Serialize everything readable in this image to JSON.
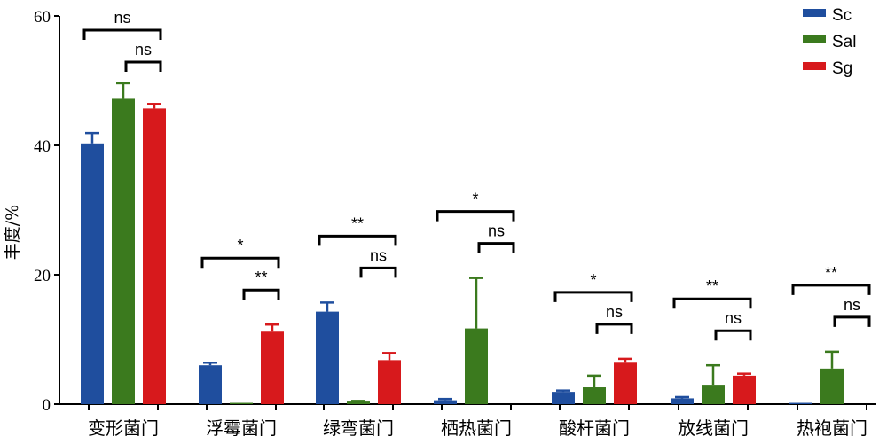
{
  "chart_data": {
    "type": "bar",
    "title": "",
    "xlabel": "",
    "ylabel": "丰度/%",
    "ylim": [
      0,
      60
    ],
    "yticks": [
      0,
      20,
      40,
      60
    ],
    "grid": false,
    "legend_position": "top-right",
    "categories": [
      "变形菌门",
      "浮霉菌门",
      "绿弯菌门",
      "栖热菌门",
      "酸杆菌门",
      "放线菌门",
      "热袍菌门"
    ],
    "series": [
      {
        "name": "Sc",
        "color": "#1f4e9e",
        "values": [
          40.3,
          6.0,
          14.3,
          0.6,
          1.9,
          0.9,
          0.2
        ],
        "errors": [
          1.6,
          0.4,
          1.4,
          0.2,
          0.2,
          0.2,
          0.0
        ]
      },
      {
        "name": "Sal",
        "color": "#3b7a1e",
        "values": [
          47.2,
          0.2,
          0.4,
          11.7,
          2.6,
          3.0,
          5.5
        ],
        "errors": [
          2.4,
          0.0,
          0.1,
          7.8,
          1.8,
          3.0,
          2.6
        ]
      },
      {
        "name": "Sg",
        "color": "#d7191c",
        "values": [
          45.7,
          11.2,
          6.8,
          0.0,
          6.4,
          4.4,
          0.0
        ],
        "errors": [
          0.7,
          1.1,
          1.1,
          0.0,
          0.6,
          0.3,
          0.0
        ]
      }
    ],
    "significance": [
      {
        "category": 0,
        "outer": "ns",
        "inner": "ns"
      },
      {
        "category": 1,
        "outer": "*",
        "inner": "**"
      },
      {
        "category": 2,
        "outer": "**",
        "inner": "ns"
      },
      {
        "category": 3,
        "outer": "*",
        "inner": "ns"
      },
      {
        "category": 4,
        "outer": "*",
        "inner": "ns"
      },
      {
        "category": 5,
        "outer": "**",
        "inner": "ns"
      },
      {
        "category": 6,
        "outer": "**",
        "inner": "ns"
      }
    ]
  }
}
